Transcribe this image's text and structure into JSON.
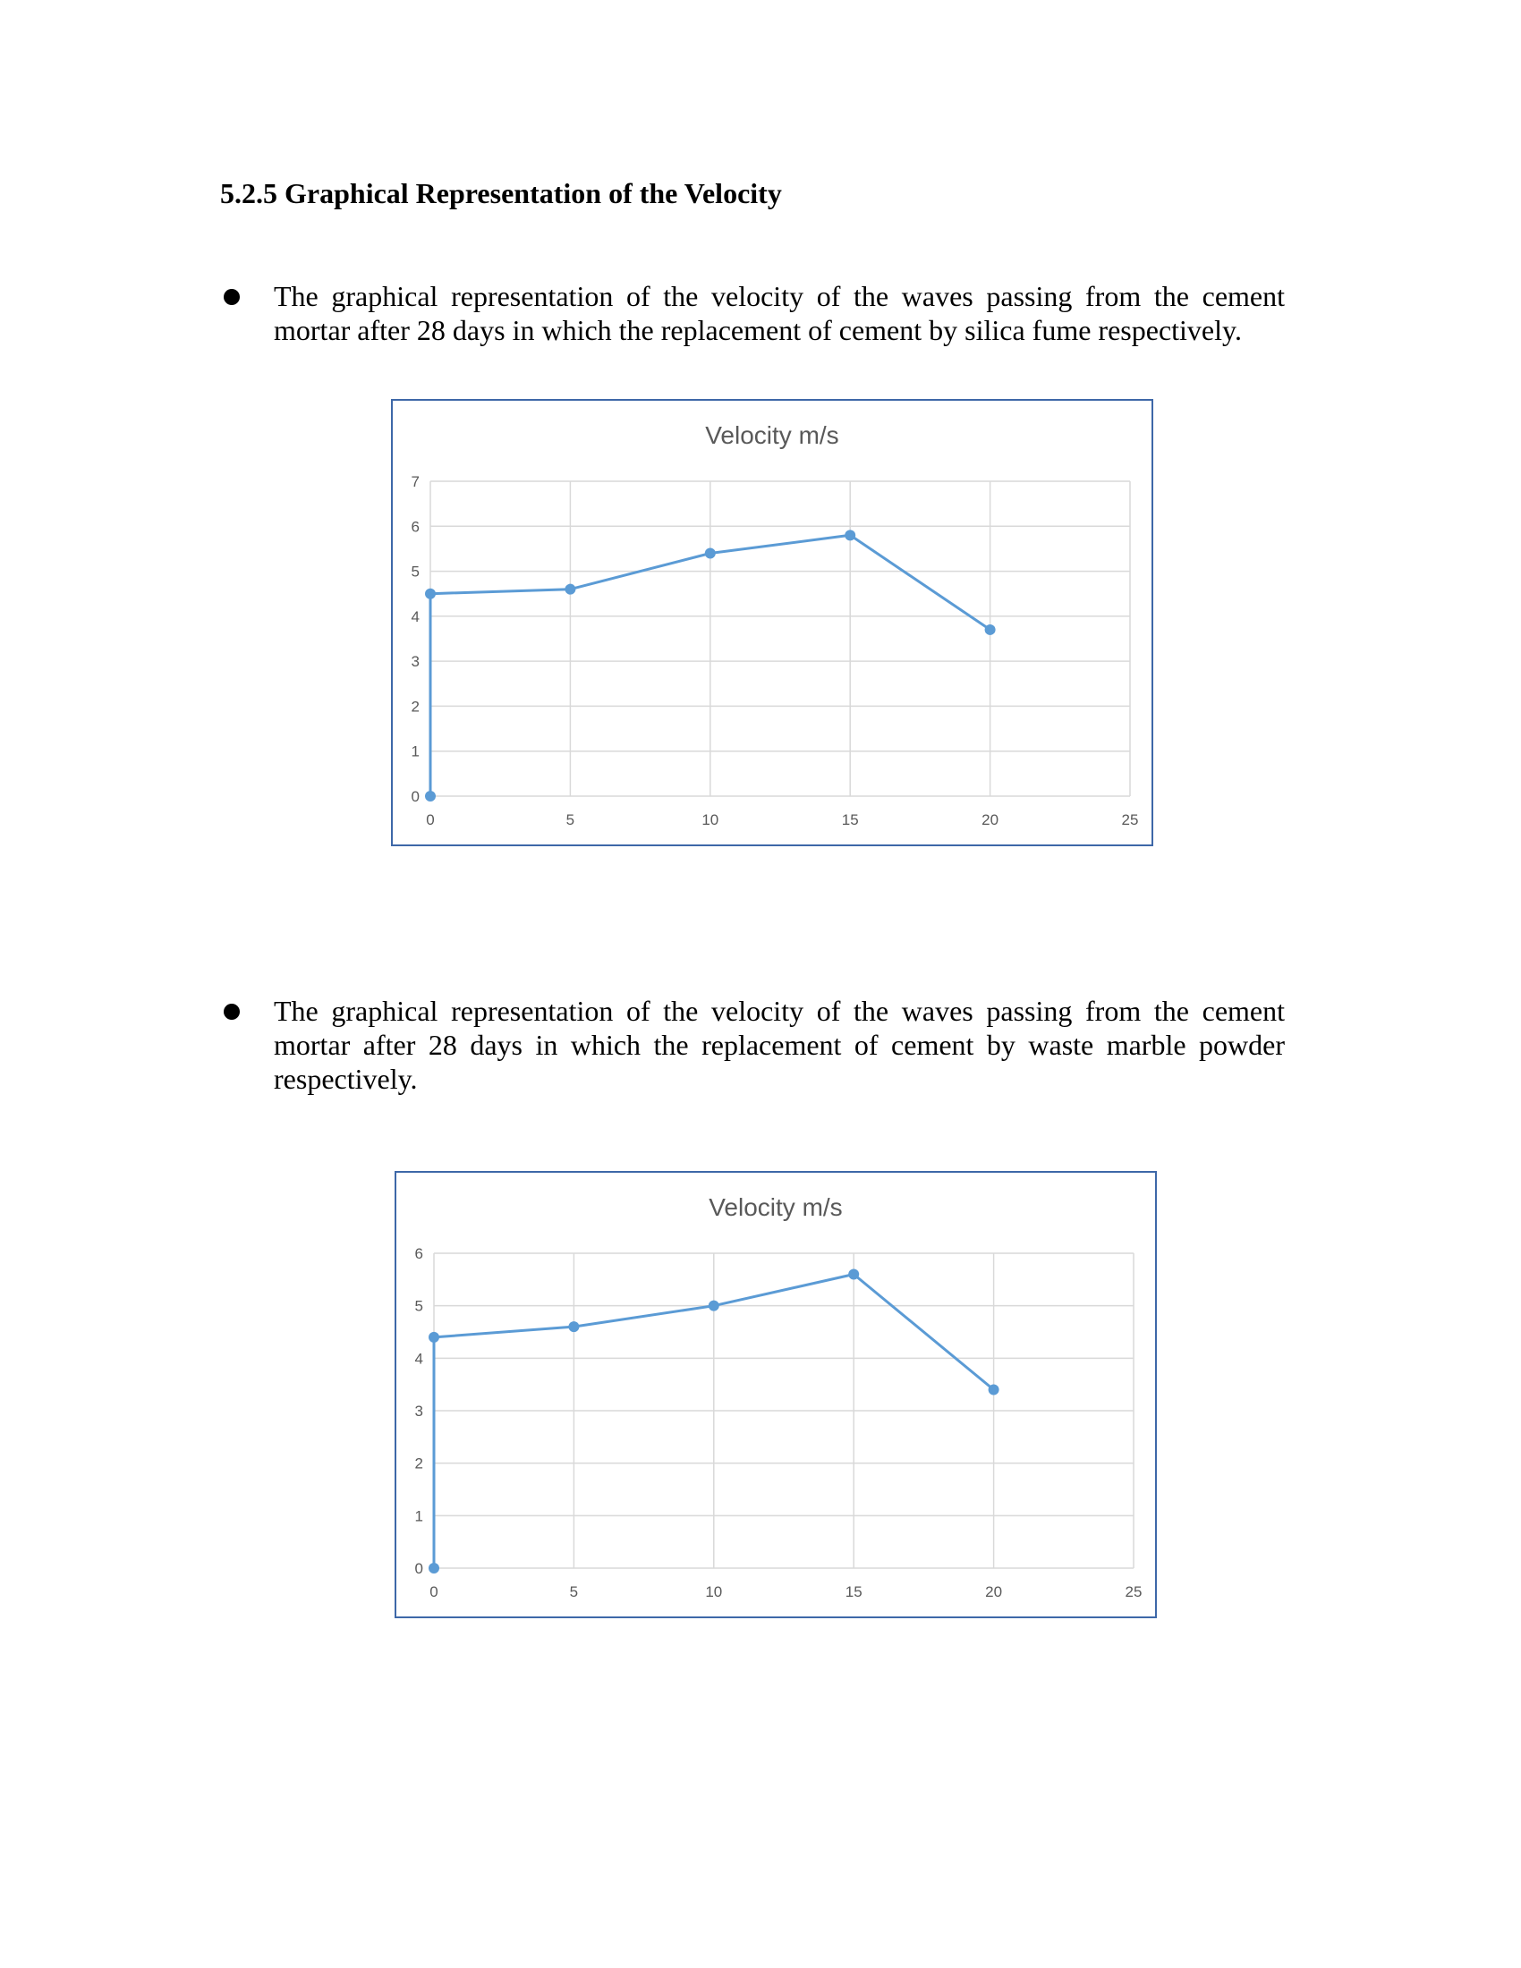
{
  "heading": "5.2.5 Graphical Representation of the Velocity",
  "bullets": [
    "The graphical representation of the velocity of the waves passing  from the  cement mortar after 28 days in which the replacement of cement by silica fume respectively.",
    "The graphical representation of the velocity of the waves passing  from the  cement mortar after 28 days in which the replacement of cement by waste marble powder respectively."
  ],
  "chart_data": [
    {
      "type": "line",
      "title": "Velocity m/s",
      "xlabel": "",
      "ylabel": "",
      "xlim": [
        0,
        25
      ],
      "ylim": [
        0,
        7
      ],
      "x_ticks": [
        "0",
        "5",
        "10",
        "15",
        "20",
        "25"
      ],
      "y_ticks": [
        "0",
        "1",
        "2",
        "3",
        "4",
        "5",
        "6",
        "7"
      ],
      "grid": true,
      "series": [
        {
          "color": "#5b9bd5",
          "x": [
            0,
            0,
            5,
            10,
            15,
            20
          ],
          "y": [
            0,
            4.5,
            4.6,
            5.4,
            5.8,
            3.7
          ]
        }
      ]
    },
    {
      "type": "line",
      "title": "Velocity m/s",
      "xlabel": "",
      "ylabel": "",
      "xlim": [
        0,
        25
      ],
      "ylim": [
        0,
        6
      ],
      "x_ticks": [
        "0",
        "5",
        "10",
        "15",
        "20",
        "25"
      ],
      "y_ticks": [
        "0",
        "1",
        "2",
        "3",
        "4",
        "5",
        "6"
      ],
      "grid": true,
      "series": [
        {
          "color": "#5b9bd5",
          "x": [
            0,
            0,
            5,
            10,
            15,
            20
          ],
          "y": [
            0,
            4.4,
            4.6,
            5.0,
            5.6,
            3.4
          ]
        }
      ]
    }
  ]
}
